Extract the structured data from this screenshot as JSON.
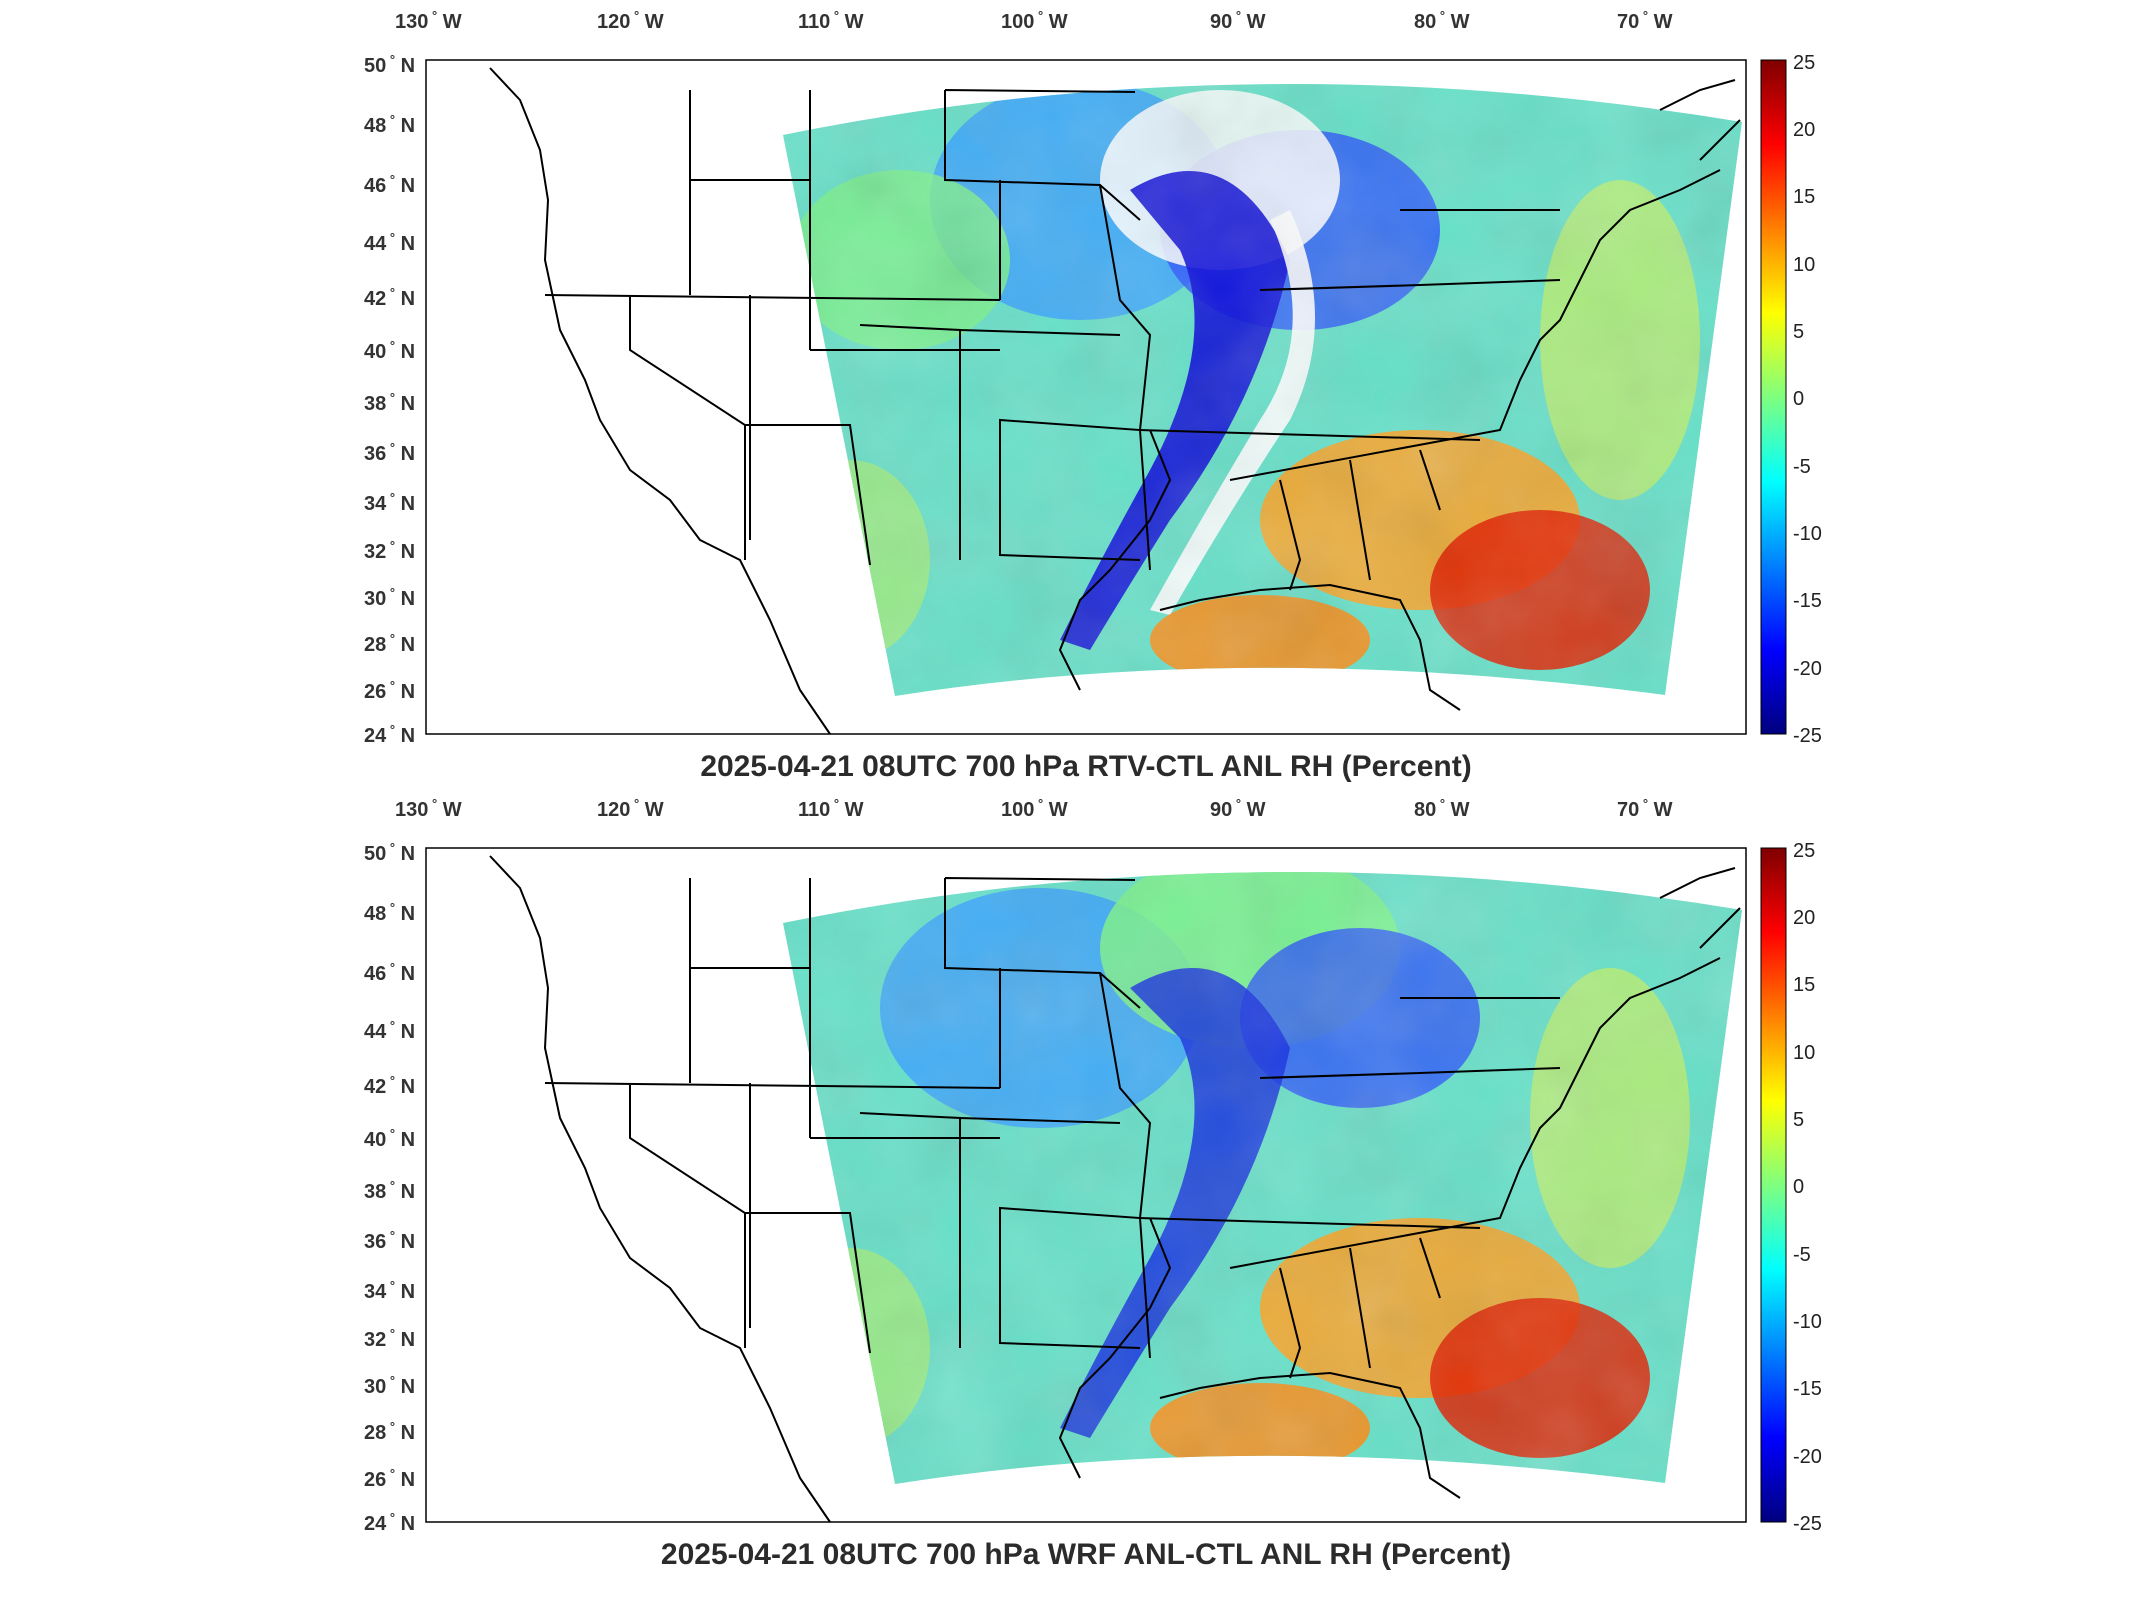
{
  "colormap": [
    "#00007f",
    "#0000ff",
    "#007fff",
    "#00ffff",
    "#7fff7f",
    "#ffff00",
    "#ff7f00",
    "#ff0000",
    "#7f0000"
  ],
  "coastline_color": "#000000",
  "panels": [
    {
      "title": "2025-04-21 08UTC 700 hPa RTV-CTL ANL RH (Percent)",
      "lon_ticks": [
        {
          "deg": "130",
          "hem": "W"
        },
        {
          "deg": "120",
          "hem": "W"
        },
        {
          "deg": "110",
          "hem": "W"
        },
        {
          "deg": "100",
          "hem": "W"
        },
        {
          "deg": "90",
          "hem": "W"
        },
        {
          "deg": "80",
          "hem": "W"
        },
        {
          "deg": "70",
          "hem": "W"
        }
      ],
      "lat_ticks": [
        {
          "deg": "50",
          "hem": "N"
        },
        {
          "deg": "48",
          "hem": "N"
        },
        {
          "deg": "46",
          "hem": "N"
        },
        {
          "deg": "44",
          "hem": "N"
        },
        {
          "deg": "42",
          "hem": "N"
        },
        {
          "deg": "40",
          "hem": "N"
        },
        {
          "deg": "38",
          "hem": "N"
        },
        {
          "deg": "36",
          "hem": "N"
        },
        {
          "deg": "34",
          "hem": "N"
        },
        {
          "deg": "32",
          "hem": "N"
        },
        {
          "deg": "30",
          "hem": "N"
        },
        {
          "deg": "28",
          "hem": "N"
        },
        {
          "deg": "26",
          "hem": "N"
        },
        {
          "deg": "24",
          "hem": "N"
        }
      ],
      "colorbar_ticks": [
        "25",
        "20",
        "15",
        "10",
        "5",
        "0",
        "-5",
        "-10",
        "-15",
        "-20",
        "-25"
      ],
      "colorbar_range": [
        -25,
        25
      ]
    },
    {
      "title": "2025-04-21 08UTC 700 hPa WRF ANL-CTL ANL RH (Percent)",
      "lon_ticks": [
        {
          "deg": "130",
          "hem": "W"
        },
        {
          "deg": "120",
          "hem": "W"
        },
        {
          "deg": "110",
          "hem": "W"
        },
        {
          "deg": "100",
          "hem": "W"
        },
        {
          "deg": "90",
          "hem": "W"
        },
        {
          "deg": "80",
          "hem": "W"
        },
        {
          "deg": "70",
          "hem": "W"
        }
      ],
      "lat_ticks": [
        {
          "deg": "50",
          "hem": "N"
        },
        {
          "deg": "48",
          "hem": "N"
        },
        {
          "deg": "46",
          "hem": "N"
        },
        {
          "deg": "44",
          "hem": "N"
        },
        {
          "deg": "42",
          "hem": "N"
        },
        {
          "deg": "40",
          "hem": "N"
        },
        {
          "deg": "38",
          "hem": "N"
        },
        {
          "deg": "36",
          "hem": "N"
        },
        {
          "deg": "34",
          "hem": "N"
        },
        {
          "deg": "32",
          "hem": "N"
        },
        {
          "deg": "30",
          "hem": "N"
        },
        {
          "deg": "28",
          "hem": "N"
        },
        {
          "deg": "26",
          "hem": "N"
        },
        {
          "deg": "24",
          "hem": "N"
        }
      ],
      "colorbar_ticks": [
        "25",
        "20",
        "15",
        "10",
        "5",
        "0",
        "-5",
        "-10",
        "-15",
        "-20",
        "-25"
      ],
      "colorbar_range": [
        -25,
        25
      ]
    }
  ]
}
